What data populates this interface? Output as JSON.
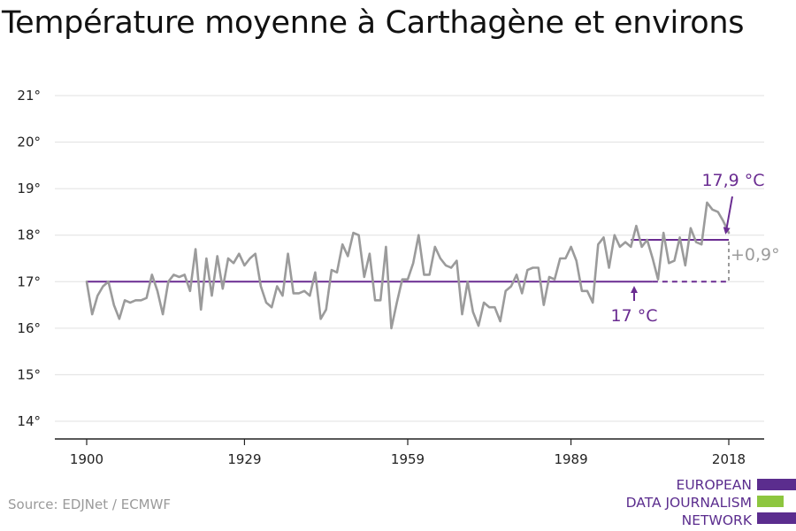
{
  "title": "Température moyenne à Carthagène et environs",
  "source": "Source: EDJNet / ECMWF",
  "logo": {
    "lines": [
      "EUROPEAN",
      "DATA JOURNALISM",
      "NETWORK"
    ],
    "colors": [
      "#5b2d8e",
      "#8dc63f",
      "#5b2d8e"
    ]
  },
  "colors": {
    "series": "#9b9b9b",
    "baseline": "#6a2c91",
    "recent": "#6a2c91",
    "delta": "#9b9b9b",
    "grid": "#e0e0e0",
    "axis": "#222222"
  },
  "chart_data": {
    "type": "line",
    "title": "Température moyenne à Carthagène et environs",
    "xlabel": "",
    "ylabel": "",
    "xlim": [
      1900,
      2018
    ],
    "ylim": [
      13.6,
      21.4
    ],
    "x_ticks": [
      1900,
      1929,
      1959,
      1989,
      2018
    ],
    "y_ticks": [
      14,
      15,
      16,
      17,
      18,
      19,
      20,
      21
    ],
    "y_tick_labels": [
      "14°",
      "15°",
      "16°",
      "17°",
      "18°",
      "19°",
      "20°",
      "21°"
    ],
    "grid": true,
    "series": [
      {
        "x_start": 1900,
        "x_step": 1,
        "values": [
          17.0,
          16.3,
          16.7,
          16.9,
          17.0,
          16.5,
          16.2,
          16.6,
          16.55,
          16.6,
          16.6,
          16.65,
          17.15,
          16.8,
          16.3,
          17.0,
          17.15,
          17.1,
          17.15,
          16.8,
          17.7,
          16.4,
          17.5,
          16.7,
          17.55,
          16.85,
          17.5,
          17.4,
          17.6,
          17.35,
          17.5,
          17.6,
          16.9,
          16.55,
          16.45,
          16.9,
          16.7,
          17.6,
          16.75,
          16.75,
          16.8,
          16.7,
          17.2,
          16.2,
          16.4,
          17.25,
          17.2,
          17.8,
          17.55,
          18.05,
          18.0,
          17.1,
          17.6,
          16.6,
          16.6,
          17.75,
          16.0,
          16.55,
          17.05,
          17.05,
          17.4,
          18.0,
          17.15,
          17.15,
          17.75,
          17.5,
          17.35,
          17.3,
          17.45,
          16.3,
          17.0,
          16.35,
          16.05,
          16.55,
          16.45,
          16.45,
          16.15,
          16.8,
          16.9,
          17.15,
          16.75,
          17.25,
          17.3,
          17.3,
          16.5,
          17.1,
          17.05,
          17.5,
          17.5,
          17.75,
          17.45,
          16.8,
          16.8,
          16.55,
          17.8,
          17.95,
          17.3,
          18.0,
          17.75,
          17.85,
          17.75,
          18.2,
          17.75,
          17.9,
          17.5,
          17.05,
          18.05,
          17.4,
          17.45,
          17.95,
          17.35,
          18.15,
          17.85,
          17.8,
          18.7,
          18.55,
          18.5,
          18.3,
          18.05
        ]
      }
    ],
    "baseline": {
      "value": 17.0,
      "x_from": 1900,
      "x_to": 2018,
      "label": "17 °C"
    },
    "recent": {
      "value": 17.9,
      "x_from": 2000,
      "x_to": 2018,
      "label": "17,9 °C"
    },
    "delta_label": "+0,9°"
  }
}
